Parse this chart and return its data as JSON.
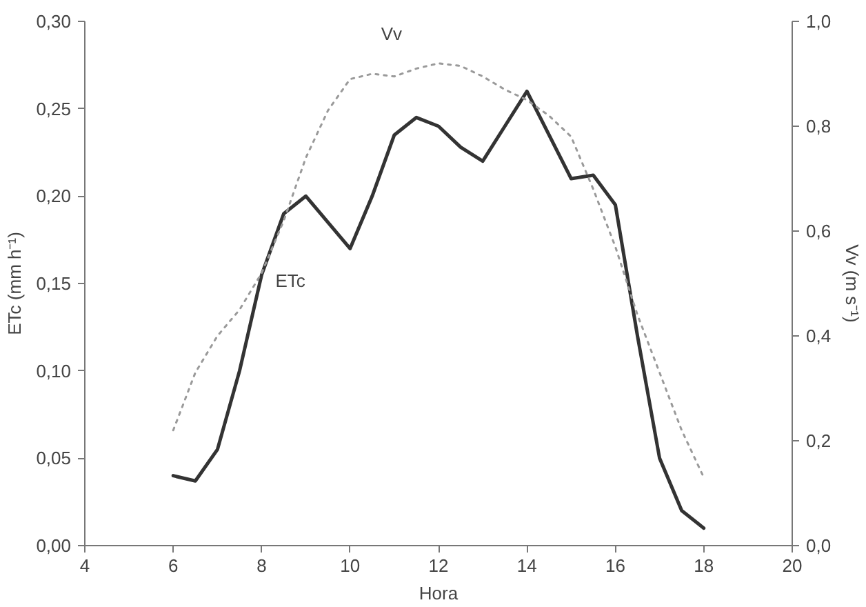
{
  "chart_data": {
    "type": "line",
    "xlabel": "Hora",
    "ylabel": "ETc (mm h⁻¹)",
    "y2label": "Vv (m s⁻¹)",
    "x": [
      6,
      6.5,
      7,
      7.5,
      8,
      8.5,
      9,
      9.5,
      10,
      10.5,
      11,
      11.5,
      12,
      12.5,
      13,
      13.5,
      14,
      14.5,
      15,
      15.5,
      16,
      16.5,
      17,
      17.5,
      18
    ],
    "series": [
      {
        "name": "ETc",
        "color": "#333333",
        "line_style": "solid",
        "values": [
          0.04,
          0.037,
          0.055,
          0.1,
          0.155,
          0.19,
          0.2,
          0.185,
          0.17,
          0.2,
          0.235,
          0.245,
          0.24,
          0.228,
          0.22,
          0.24,
          0.26,
          0.235,
          0.21,
          0.212,
          0.195,
          0.12,
          0.05,
          0.02,
          0.01
        ]
      },
      {
        "name": "Vv",
        "color": "#9a9a9a",
        "line_style": "dotted",
        "axis": "y2",
        "values": [
          0.22,
          0.33,
          0.4,
          0.45,
          0.52,
          0.62,
          0.74,
          0.83,
          0.89,
          0.9,
          0.895,
          0.91,
          0.92,
          0.915,
          0.895,
          0.87,
          0.85,
          0.82,
          0.78,
          0.68,
          0.57,
          0.44,
          0.33,
          0.22,
          0.13
        ]
      }
    ],
    "xlim": [
      4,
      20
    ],
    "xticks": [
      4,
      6,
      8,
      10,
      12,
      14,
      16,
      18,
      20
    ],
    "ylim": [
      0,
      0.3
    ],
    "yticks": [
      {
        "value": 0,
        "label": "0,00"
      },
      {
        "value": 0.05,
        "label": "0,05"
      },
      {
        "value": 0.1,
        "label": "0,10"
      },
      {
        "value": 0.15,
        "label": "0,15"
      },
      {
        "value": 0.2,
        "label": "0,20"
      },
      {
        "value": 0.25,
        "label": "0,25"
      },
      {
        "value": 0.3,
        "label": "0,30"
      }
    ],
    "y2lim": [
      0,
      1
    ],
    "y2ticks": [
      {
        "value": 0,
        "label": "0,0"
      },
      {
        "value": 0.2,
        "label": "0,2"
      },
      {
        "value": 0.4,
        "label": "0,4"
      },
      {
        "value": 0.6,
        "label": "0,6"
      },
      {
        "value": 0.8,
        "label": "0,8"
      },
      {
        "value": 1,
        "label": "1,0"
      }
    ],
    "grid": false,
    "marker": "none"
  }
}
